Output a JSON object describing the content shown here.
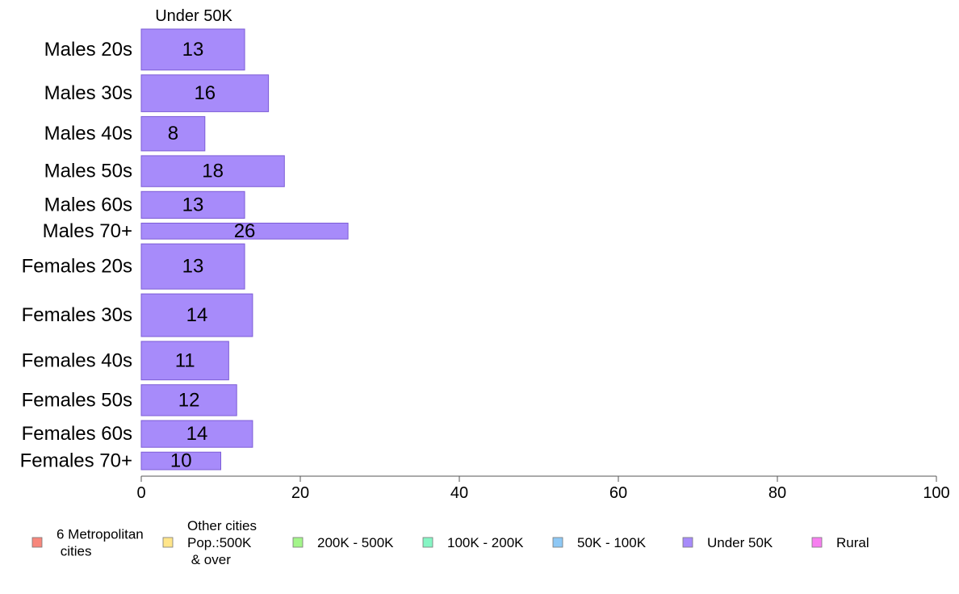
{
  "chart_data": {
    "type": "bar",
    "orientation": "horizontal",
    "panel_title": "Under 50K",
    "categories": [
      "Males 20s",
      "Males 30s",
      "Males 40s",
      "Males 50s",
      "Males 60s",
      "Males 70+",
      "Females 20s",
      "Females 30s",
      "Females 40s",
      "Females 50s",
      "Females 60s",
      "Females 70+"
    ],
    "values": [
      13,
      16,
      8,
      18,
      13,
      26,
      13,
      14,
      11,
      12,
      14,
      10
    ],
    "data_labels": [
      "13",
      "16",
      "8",
      "18",
      "13",
      "26",
      "13",
      "14",
      "11",
      "12",
      "14",
      "10"
    ],
    "bar_thickness_weights": [
      49,
      44,
      41,
      37,
      32,
      19,
      54,
      51,
      46,
      37,
      32,
      21
    ],
    "xlim": [
      0,
      100
    ],
    "xticks": [
      0,
      20,
      40,
      60,
      80,
      100
    ],
    "xtick_labels": [
      "0",
      "20",
      "40",
      "60",
      "80",
      "100"
    ],
    "grid": false,
    "bar_color": "#a78bfa",
    "bar_border_color": "#7c5cd6",
    "legend_placement": "bottom",
    "legend": [
      {
        "lines": [
          "6 Metropolitan",
          " cities"
        ],
        "color": "#f7877c"
      },
      {
        "lines": [
          "Other cities",
          "Pop.:500K",
          " & over"
        ],
        "color": "#ffe58a"
      },
      {
        "lines": [
          "200K - 500K"
        ],
        "color": "#a3f58a"
      },
      {
        "lines": [
          "100K - 200K"
        ],
        "color": "#86f5c4"
      },
      {
        "lines": [
          "50K - 100K"
        ],
        "color": "#8ec8f5"
      },
      {
        "lines": [
          "Under 50K"
        ],
        "color": "#a78bfa"
      },
      {
        "lines": [
          "Rural"
        ],
        "color": "#f77ff0"
      }
    ]
  }
}
